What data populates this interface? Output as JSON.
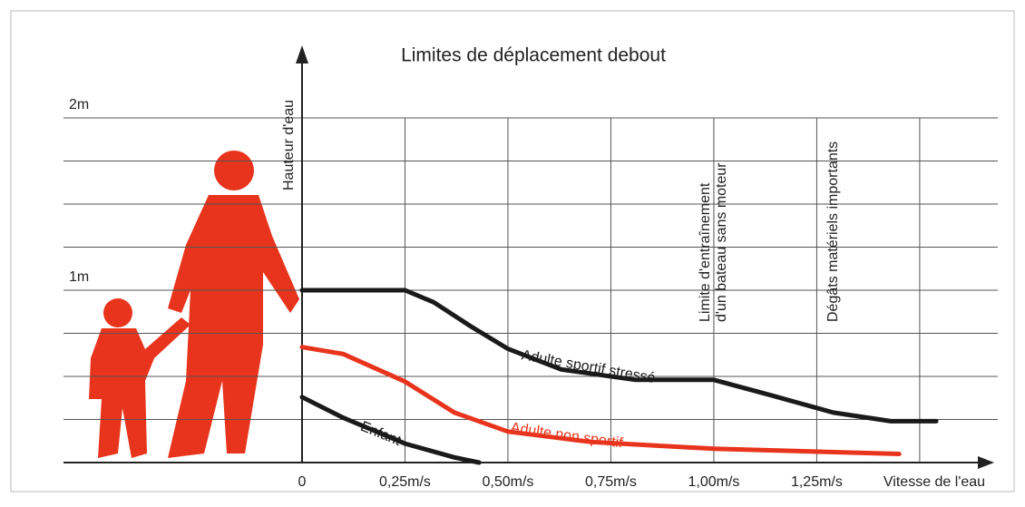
{
  "chart_data": {
    "type": "line",
    "title": "Limites de déplacement debout",
    "y_label": "Hauteur d'eau",
    "x_label": "Vitesse de l'eau",
    "xlim": [
      0,
      1.65
    ],
    "ylim": [
      0,
      2.4
    ],
    "xticks": [
      0,
      {
        "value": 0.25,
        "label": "0,25m/s"
      },
      {
        "value": 0.5,
        "label": "0,50m/s"
      },
      {
        "value": 0.75,
        "label": "0,75m/s"
      },
      {
        "value": 1.0,
        "label": "1,00m/s"
      },
      {
        "value": 1.25,
        "label": "1,25m/s"
      }
    ],
    "xgrid": [
      0.25,
      0.5,
      0.75,
      1.0,
      1.25,
      1.5
    ],
    "yticks": [
      {
        "value": 1,
        "label": "1m"
      },
      {
        "value": 2,
        "label": "2m"
      }
    ],
    "ygrid": [
      0.25,
      0.5,
      0.75,
      1,
      1.25,
      1.5,
      1.75,
      2
    ],
    "annotations": [
      {
        "x": 1.0,
        "lines": [
          "Limite d'entraînement",
          "d'un bateau sans moteur"
        ]
      },
      {
        "x": 1.29,
        "lines": [
          "Dégâts matériels importants"
        ]
      }
    ],
    "series": [
      {
        "name": "Adulte sportif stressé",
        "color": "#1a1a1a",
        "x": [
          0,
          0.25,
          0.32,
          0.41,
          0.5,
          0.63,
          0.81,
          1.0,
          1.14,
          1.29,
          1.43,
          1.54
        ],
        "values": [
          1.0,
          1.0,
          0.93,
          0.79,
          0.66,
          0.54,
          0.48,
          0.48,
          0.39,
          0.29,
          0.24,
          0.24
        ]
      },
      {
        "name": "Adulte non sportif",
        "color": "#e8341c",
        "x": [
          0,
          0.1,
          0.25,
          0.37,
          0.5,
          0.7,
          1.0,
          1.45
        ],
        "values": [
          0.67,
          0.63,
          0.47,
          0.29,
          0.18,
          0.12,
          0.08,
          0.05
        ]
      },
      {
        "name": "Enfant",
        "color": "#1a1a1a",
        "x": [
          0,
          0.1,
          0.25,
          0.37,
          0.43
        ],
        "values": [
          0.38,
          0.26,
          0.11,
          0.03,
          0
        ]
      }
    ]
  }
}
